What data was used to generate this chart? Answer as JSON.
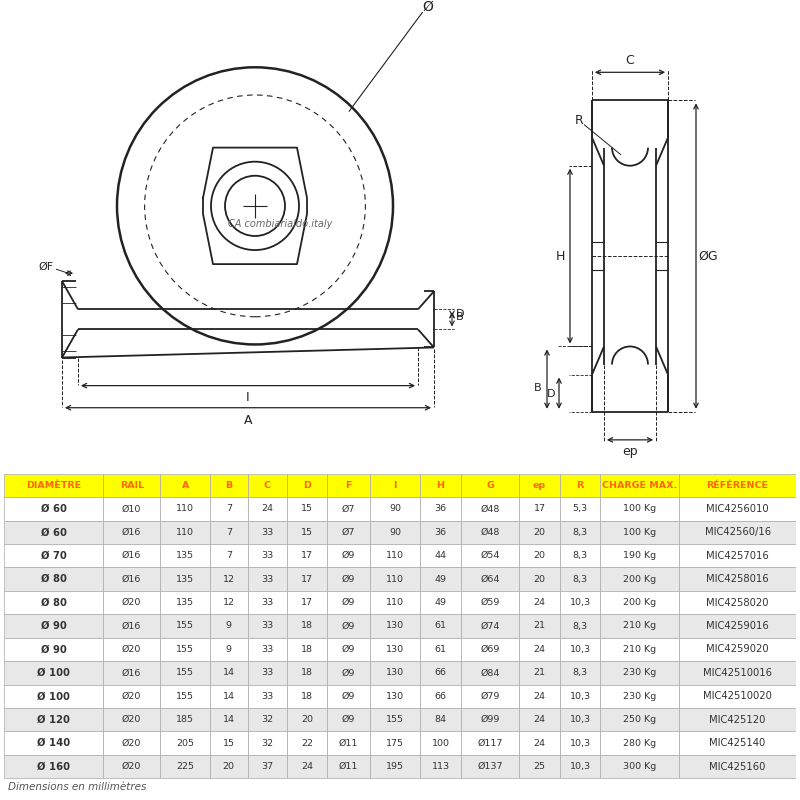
{
  "headers": [
    "DIAMÈTRE",
    "RAIL",
    "A",
    "B",
    "C",
    "D",
    "F",
    "I",
    "H",
    "G",
    "ep",
    "R",
    "CHARGE MAX.",
    "RÉFÉRENCE"
  ],
  "rows": [
    [
      "Ø 60",
      "Ø10",
      "110",
      "7",
      "24",
      "15",
      "Ø7",
      "90",
      "36",
      "Ø48",
      "17",
      "5,3",
      "100 Kg",
      "MIC4256010"
    ],
    [
      "Ø 60",
      "Ø16",
      "110",
      "7",
      "33",
      "15",
      "Ø7",
      "90",
      "36",
      "Ø48",
      "20",
      "8,3",
      "100 Kg",
      "MIC42560/16"
    ],
    [
      "Ø 70",
      "Ø16",
      "135",
      "7",
      "33",
      "17",
      "Ø9",
      "110",
      "44",
      "Ø54",
      "20",
      "8,3",
      "190 Kg",
      "MIC4257016"
    ],
    [
      "Ø 80",
      "Ø16",
      "135",
      "12",
      "33",
      "17",
      "Ø9",
      "110",
      "49",
      "Ø64",
      "20",
      "8,3",
      "200 Kg",
      "MIC4258016"
    ],
    [
      "Ø 80",
      "Ø20",
      "135",
      "12",
      "33",
      "17",
      "Ø9",
      "110",
      "49",
      "Ø59",
      "24",
      "10,3",
      "200 Kg",
      "MIC4258020"
    ],
    [
      "Ø 90",
      "Ø16",
      "155",
      "9",
      "33",
      "18",
      "Ø9",
      "130",
      "61",
      "Ø74",
      "21",
      "8,3",
      "210 Kg",
      "MIC4259016"
    ],
    [
      "Ø 90",
      "Ø20",
      "155",
      "9",
      "33",
      "18",
      "Ø9",
      "130",
      "61",
      "Ø69",
      "24",
      "10,3",
      "210 Kg",
      "MIC4259020"
    ],
    [
      "Ø 100",
      "Ø16",
      "155",
      "14",
      "33",
      "18",
      "Ø9",
      "130",
      "66",
      "Ø84",
      "21",
      "8,3",
      "230 Kg",
      "MIC42510016"
    ],
    [
      "Ø 100",
      "Ø20",
      "155",
      "14",
      "33",
      "18",
      "Ø9",
      "130",
      "66",
      "Ø79",
      "24",
      "10,3",
      "230 Kg",
      "MIC42510020"
    ],
    [
      "Ø 120",
      "Ø20",
      "185",
      "14",
      "32",
      "20",
      "Ø9",
      "155",
      "84",
      "Ø99",
      "24",
      "10,3",
      "250 Kg",
      "MIC425120"
    ],
    [
      "Ø 140",
      "Ø20",
      "205",
      "15",
      "32",
      "22",
      "Ø11",
      "175",
      "100",
      "Ø117",
      "24",
      "10,3",
      "280 Kg",
      "MIC425140"
    ],
    [
      "Ø 160",
      "Ø20",
      "225",
      "20",
      "37",
      "24",
      "Ø11",
      "195",
      "113",
      "Ø137",
      "25",
      "10,3",
      "300 Kg",
      "MIC425160"
    ]
  ],
  "header_bg": "#FFFF00",
  "header_text_color": "#FF6600",
  "row_alt_bg": "#E8E8E8",
  "row_normal_bg": "#FFFFFF",
  "text_color": "#333333",
  "footer_text": "Dimensions en millimètres",
  "line_color": "#222222"
}
